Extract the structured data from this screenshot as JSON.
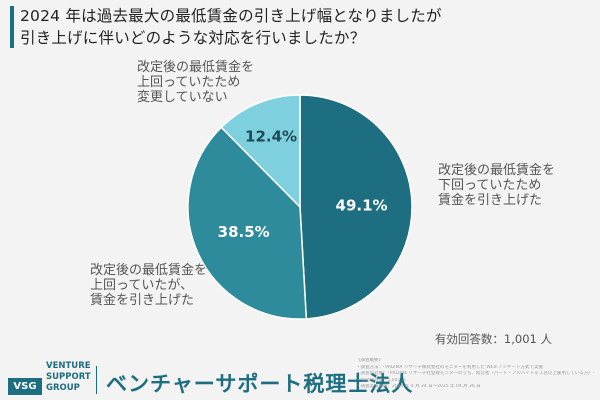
{
  "title": {
    "line1": "2024 年は過去最大の最低賃金の引き上げ幅となりましたが",
    "line2": "引き上げに伴いどのような対応を行いましたか？"
  },
  "colors": {
    "accent": "#1e6e82",
    "slice1": "#1e6e82",
    "slice2": "#2d8b9b",
    "slice3": "#7fd0df"
  },
  "chart_data": {
    "type": "pie",
    "title": "2024 年は過去最大の最低賃金の引き上げ幅となりましたが引き上げに伴いどのような対応を行いましたか？",
    "slices": [
      {
        "label": "改定後の最低賃金を下回っていたため賃金を引き上げた",
        "value": 49.1,
        "display": "49.1%"
      },
      {
        "label": "改定後の最低賃金を上回っていたが、賃金を引き上げた",
        "value": 38.5,
        "display": "38.5%"
      },
      {
        "label": "改定後の最低賃金を上回っていたため変更していない",
        "value": 12.4,
        "display": "12.4%"
      }
    ]
  },
  "labels": {
    "right": [
      "改定後の最低賃金を",
      "下回っていたため",
      "賃金を引き上げた"
    ],
    "left": [
      "改定後の最低賃金を",
      "上回っていたが、",
      "賃金を引き上げた"
    ],
    "top": [
      "改定後の最低賃金を",
      "上回っていたため",
      "変更していない"
    ]
  },
  "respondents": "有効回答数：1,001 人",
  "footer": {
    "logo_mark": "VSG",
    "logo_line1": "VENTURE",
    "logo_line2": "SUPPORT",
    "logo_line3": "GROUP",
    "company": "ベンチャーサポート税理士法人",
    "notes": [
      "《調査概要》",
      "・調査方法：「PRIZMA リサーチ株式会社のモニターを利用した WEB アンケート方式で実施",
      "・調査の対象：「PRIZMA リサーチ社登録モニターのうち、経営者（パート・アルバイトを１名以上雇用している方）を対象に実施",
      "・有効回答数：1,001 人",
      "・調査実施期間：2025 年 4 月 24 日～2025 年 04 月 26 日"
    ]
  }
}
